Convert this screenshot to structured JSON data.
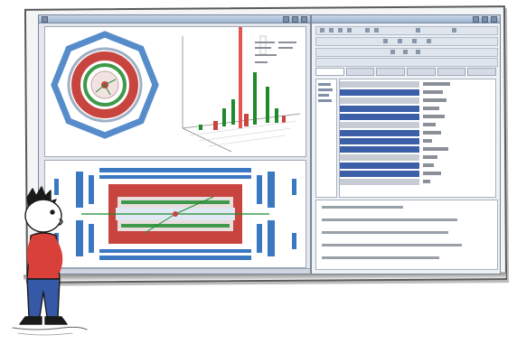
{
  "scene": {
    "description_free": true,
    "colors": {
      "detector_red": "#c8443f",
      "detector_blue": "#3a78c2",
      "detector_green": "#3e9a4a",
      "track_green": "#1e8a2c",
      "selection_blue": "#3d5fa8",
      "shirt_red": "#d9403a",
      "jeans_blue": "#3559a6"
    },
    "icons": {
      "window_controls": "window-control-icon",
      "toolbar_tools": "toolbar-tool-icon"
    }
  },
  "left_window": {
    "views": [
      "transverse-detector-view",
      "lego-plot-view",
      "longitudinal-detector-view"
    ]
  },
  "right_window": {
    "tabs_count": 6,
    "property_rows": 13,
    "log_lines": 5
  }
}
